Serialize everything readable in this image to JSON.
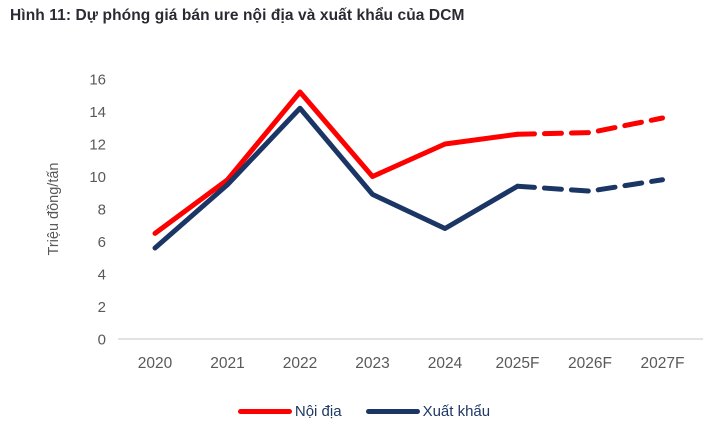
{
  "title": "Hình 11: Dự phóng giá bán ure nội địa và xuất khẩu của DCM",
  "colors": {
    "title_text": "#2a2a33",
    "axis_text": "#595959",
    "axis_line": "#d9d9d9",
    "legend_text": "#1f3864",
    "series_domestic": "#ff0000",
    "series_export": "#1b3665"
  },
  "chart_data": {
    "type": "line",
    "categories": [
      "2020",
      "2021",
      "2022",
      "2023",
      "2024",
      "2025F",
      "2026F",
      "2027F"
    ],
    "series": [
      {
        "name": "Nội địa",
        "color": "#ff0000",
        "values": [
          6.5,
          9.8,
          15.2,
          10.0,
          12.0,
          12.6,
          12.7,
          13.6
        ],
        "solid_until_index": 5
      },
      {
        "name": "Xuất khẩu",
        "color": "#1b3665",
        "values": [
          5.6,
          9.5,
          14.2,
          8.9,
          6.8,
          9.4,
          9.1,
          9.8
        ],
        "solid_until_index": 5
      }
    ],
    "title": "Hình 11: Dự phóng giá bán ure nội địa và xuất khẩu của DCM",
    "xlabel": "",
    "ylabel": "Triệu đồng/tấn",
    "ylim": [
      0,
      16
    ],
    "ytick_step": 2,
    "grid": false,
    "legend_position": "bottom",
    "forecast_style": "dashed"
  }
}
